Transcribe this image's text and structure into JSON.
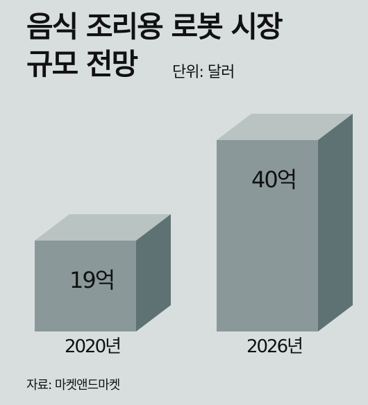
{
  "chart_data": {
    "type": "bar",
    "title_lines": [
      "음식 조리용 로봇 시장",
      "규모 전망"
    ],
    "unit_label": "단위: 달러",
    "categories": [
      "2020년",
      "2026년"
    ],
    "values": [
      19,
      40
    ],
    "value_labels": [
      "19억",
      "40억"
    ],
    "value_unit": "억 달러",
    "source": "자료: 마켓앤드마켓",
    "style": "3d-box",
    "colors": {
      "background": "#d8dede",
      "front": "#8a9899",
      "top": "#b8c3c2",
      "side": "#5f7273"
    }
  }
}
